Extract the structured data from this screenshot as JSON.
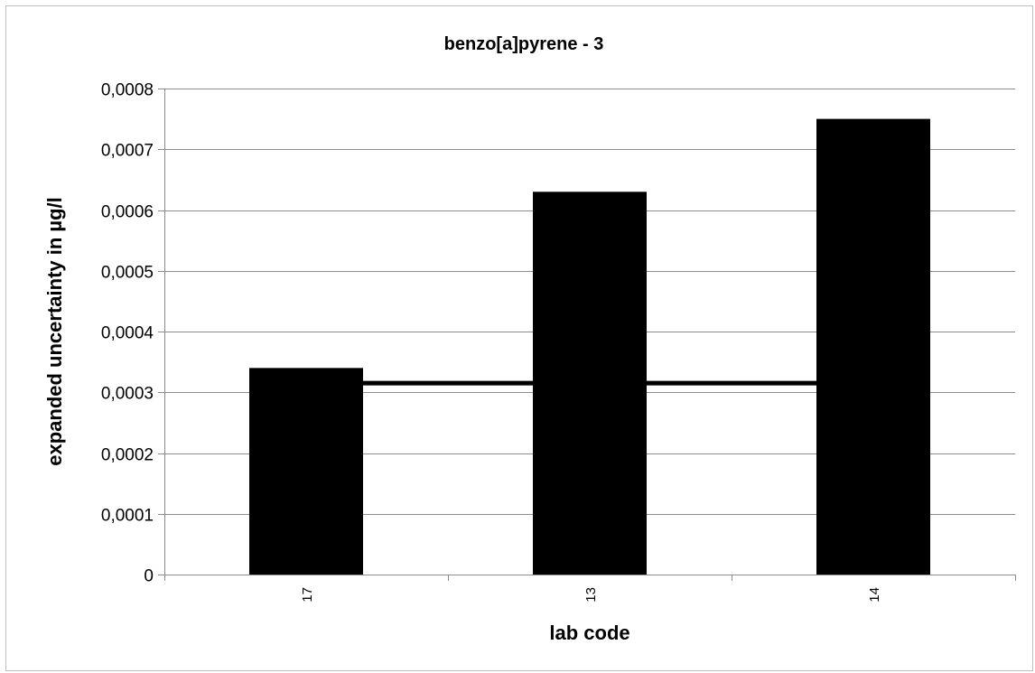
{
  "chart_data": {
    "type": "bar",
    "title": "benzo[a]pyrene - 3",
    "xlabel": "lab code",
    "ylabel": "expanded uncertainty in µg/l",
    "categories": [
      "17",
      "13",
      "14"
    ],
    "values": [
      0.00034,
      0.00063,
      0.00075
    ],
    "ylim": [
      0,
      0.0008
    ],
    "yticks": [
      0,
      0.0001,
      0.0002,
      0.0003,
      0.0004,
      0.0005,
      0.0006,
      0.0007,
      0.0008
    ],
    "ytick_labels": [
      "0",
      "0,0001",
      "0,0002",
      "0,0003",
      "0,0004",
      "0,0005",
      "0,0006",
      "0,0007",
      "0,0008"
    ],
    "reference_line": {
      "type": "horizontal",
      "y": 0.000315,
      "color": "#000000"
    },
    "grid": "horizontal",
    "legend": "none",
    "bar_color": "#000000",
    "gridline_color": "#8c8c8c"
  }
}
